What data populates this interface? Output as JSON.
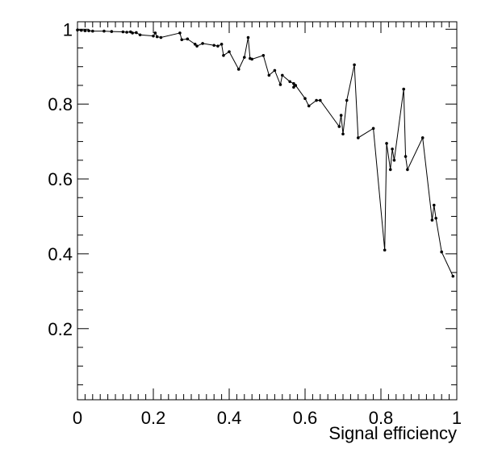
{
  "chart_data": {
    "type": "line",
    "title": "",
    "xlabel": "Signal efficiency",
    "ylabel": "",
    "xlim": [
      0,
      1
    ],
    "ylim": [
      0.01,
      1.02
    ],
    "x_ticks": [
      0,
      0.2,
      0.4,
      0.6,
      0.8,
      1
    ],
    "x_tick_labels": [
      "0",
      "0.2",
      "0.4",
      "0.6",
      "0.8",
      "1"
    ],
    "y_ticks": [
      0.2,
      0.4,
      0.6,
      0.8,
      1
    ],
    "y_tick_labels": [
      "0.2",
      "0.4",
      "0.6",
      "0.8",
      "1"
    ],
    "grid": false,
    "series": [
      {
        "color": "#000000",
        "x": [
          0.0,
          0.01,
          0.02,
          0.03,
          0.04,
          0.07,
          0.09,
          0.12,
          0.13,
          0.14,
          0.145,
          0.155,
          0.165,
          0.2,
          0.205,
          0.21,
          0.22,
          0.27,
          0.275,
          0.29,
          0.31,
          0.315,
          0.33,
          0.36,
          0.37,
          0.38,
          0.385,
          0.4,
          0.425,
          0.44,
          0.45,
          0.455,
          0.46,
          0.49,
          0.505,
          0.52,
          0.535,
          0.54,
          0.56,
          0.57,
          0.57,
          0.575,
          0.6,
          0.61,
          0.63,
          0.64,
          0.69,
          0.695,
          0.7,
          0.71,
          0.73,
          0.74,
          0.78,
          0.81,
          0.815,
          0.825,
          0.83,
          0.835,
          0.86,
          0.865,
          0.87,
          0.91,
          0.935,
          0.94,
          0.945,
          0.96,
          0.99
        ],
        "y": [
          0.998,
          0.997,
          0.996,
          0.996,
          0.995,
          0.995,
          0.994,
          0.993,
          0.992,
          0.993,
          0.99,
          0.991,
          0.985,
          0.982,
          0.99,
          0.98,
          0.978,
          0.99,
          0.972,
          0.974,
          0.96,
          0.955,
          0.962,
          0.957,
          0.955,
          0.96,
          0.93,
          0.94,
          0.893,
          0.925,
          0.978,
          0.922,
          0.92,
          0.93,
          0.877,
          0.89,
          0.852,
          0.877,
          0.86,
          0.855,
          0.845,
          0.85,
          0.815,
          0.795,
          0.81,
          0.81,
          0.74,
          0.77,
          0.72,
          0.81,
          0.905,
          0.71,
          0.735,
          0.41,
          0.695,
          0.625,
          0.68,
          0.65,
          0.84,
          0.66,
          0.625,
          0.71,
          0.49,
          0.53,
          0.495,
          0.405,
          0.34
        ]
      }
    ]
  }
}
